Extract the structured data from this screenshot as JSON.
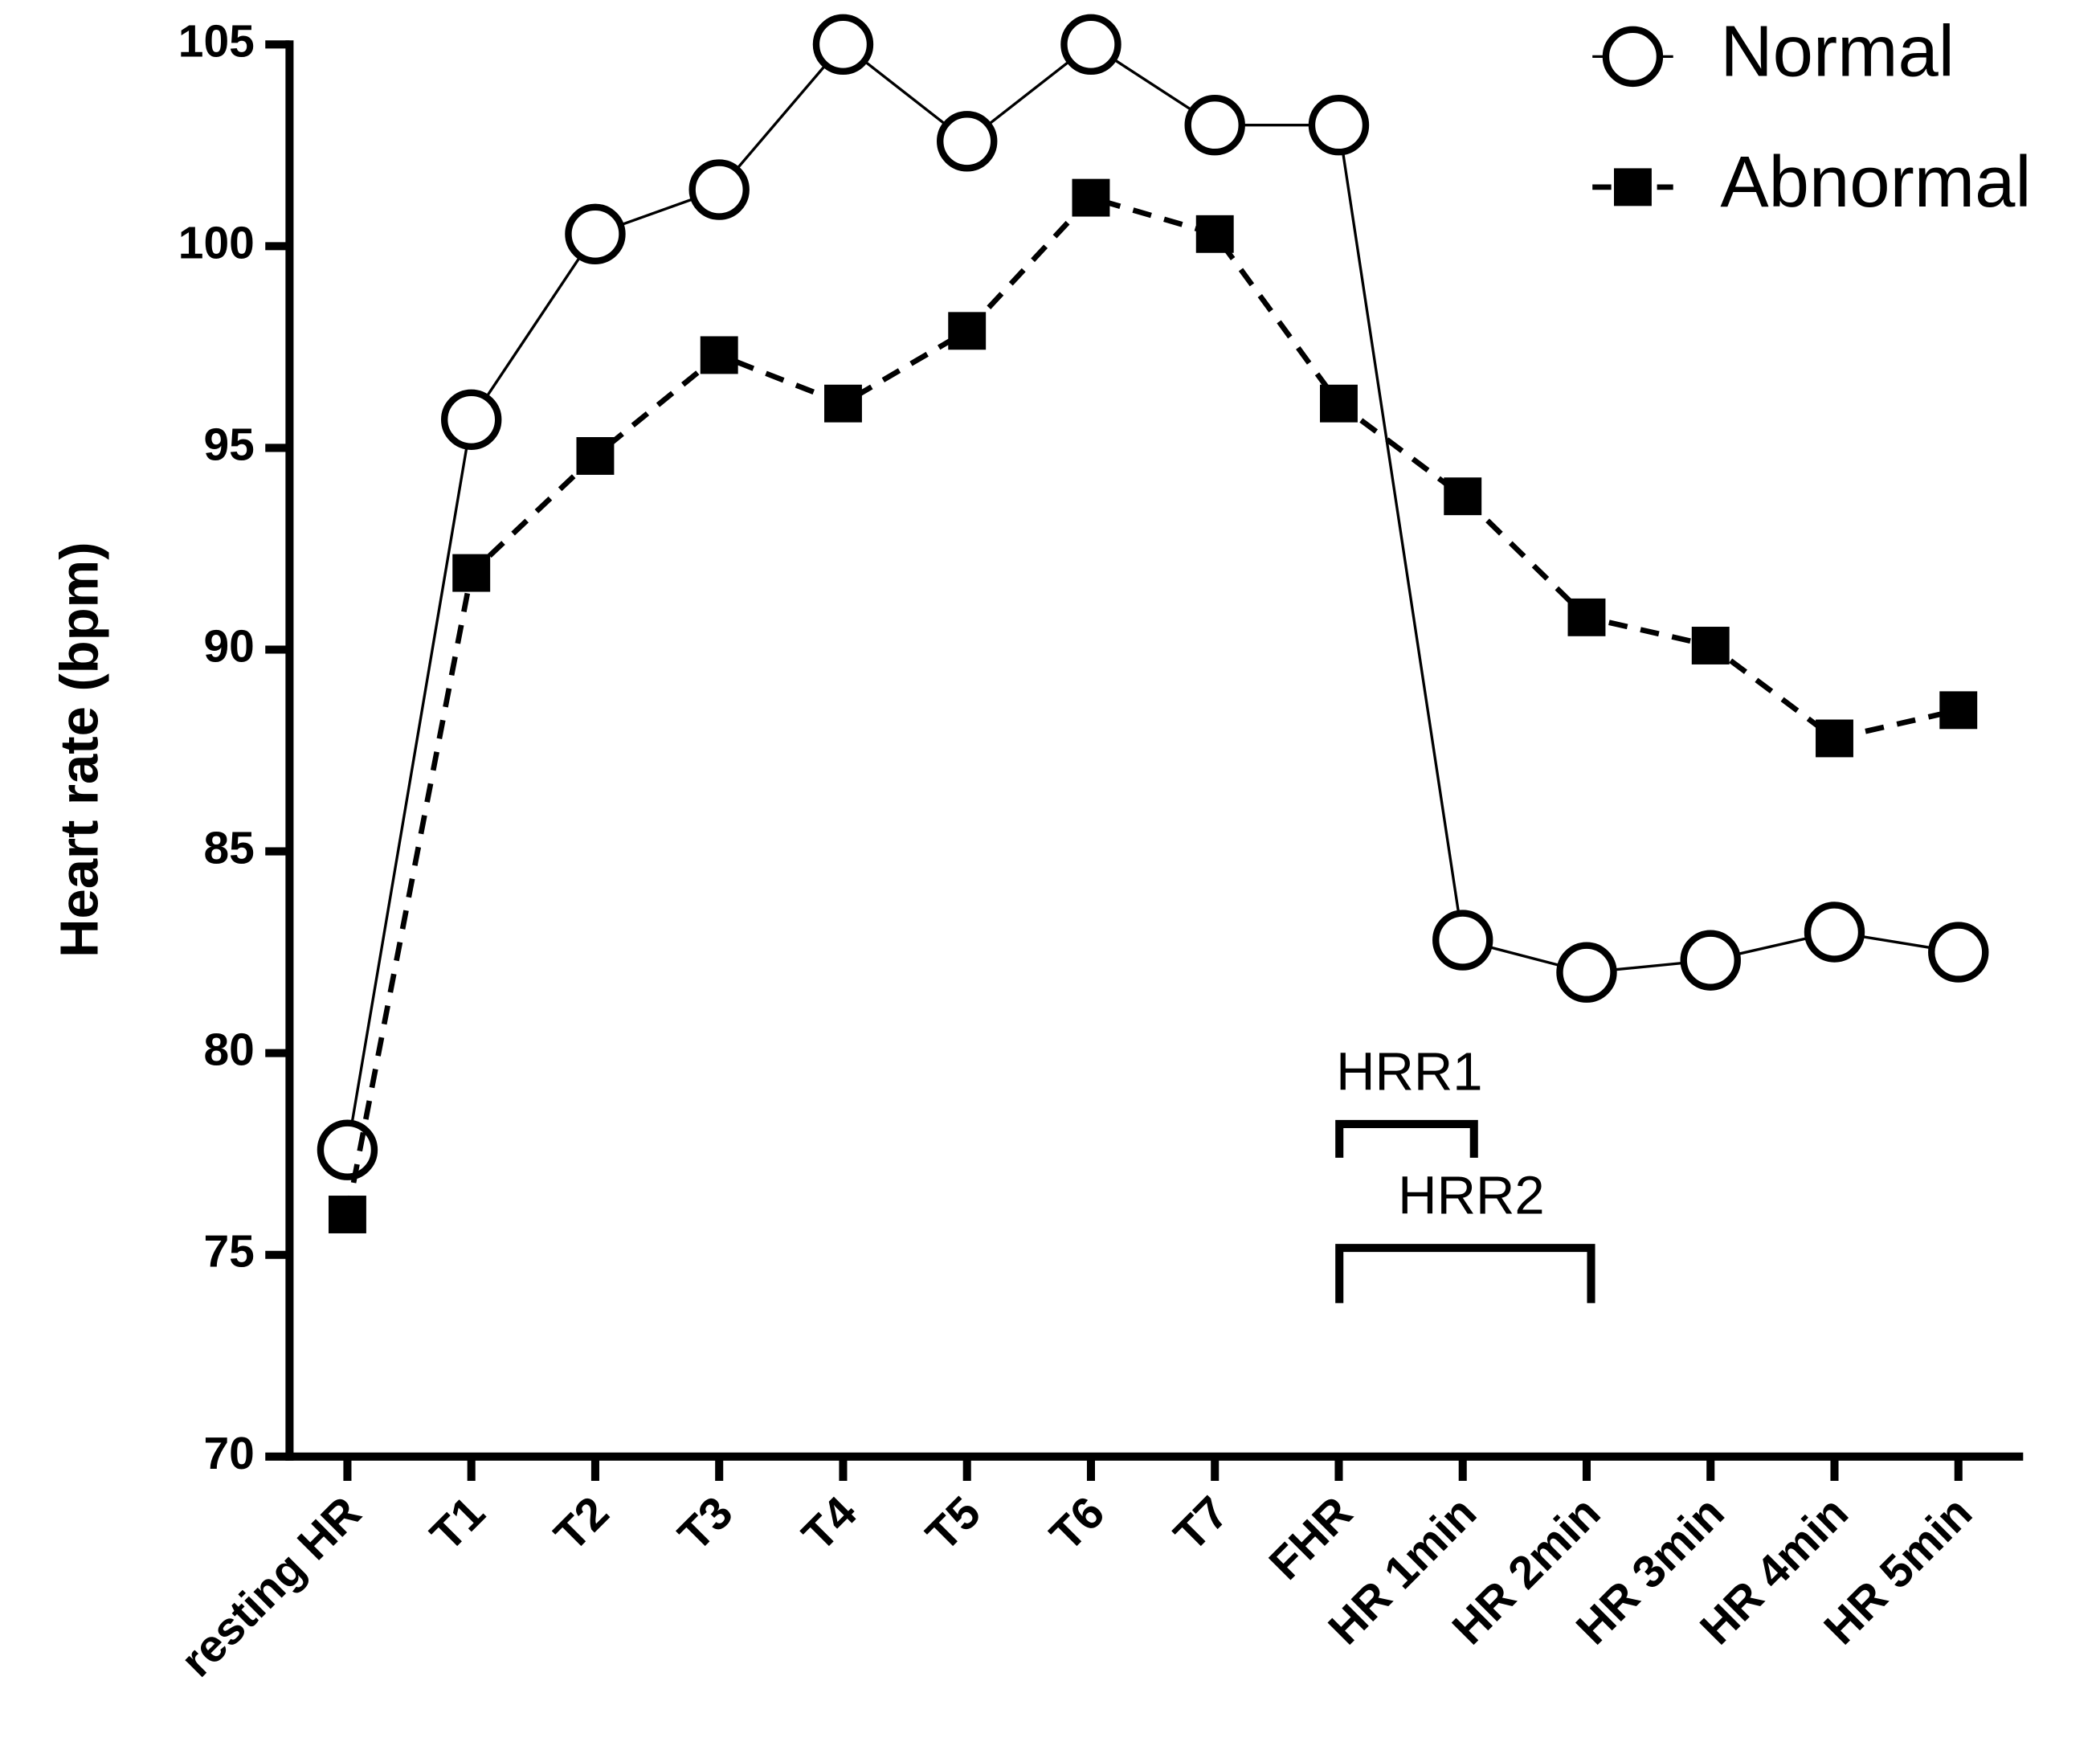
{
  "chart_data": {
    "type": "line",
    "y_label": "Heart rate (bpm)",
    "categories": [
      "resting HR",
      "T1",
      "T2",
      "T3",
      "T4",
      "T5",
      "T6",
      "T7",
      "FHR",
      "HR 1min",
      "HR 2min",
      "HR 3min",
      "HR 4min",
      "HR 5min"
    ],
    "series": [
      {
        "name": "Normal",
        "color": "#000000",
        "marker": "circle",
        "dash": false,
        "values": [
          77.6,
          95.7,
          100.3,
          101.4,
          105,
          102.6,
          105,
          103,
          103,
          82.8,
          82,
          82.3,
          83,
          82.5
        ]
      },
      {
        "name": "Abnormal",
        "color": "#000000",
        "marker": "square",
        "dash": true,
        "values": [
          76,
          91.9,
          94.8,
          97.3,
          96.1,
          97.9,
          101.2,
          100.3,
          96.1,
          93.8,
          90.8,
          90.1,
          87.8,
          88.5
        ]
      }
    ],
    "ylim": [
      70,
      105
    ],
    "yticks": [
      70,
      75,
      80,
      85,
      90,
      95,
      100,
      105
    ],
    "legend": "top-right",
    "annotations": [
      "HRR1",
      "HRR2"
    ]
  }
}
